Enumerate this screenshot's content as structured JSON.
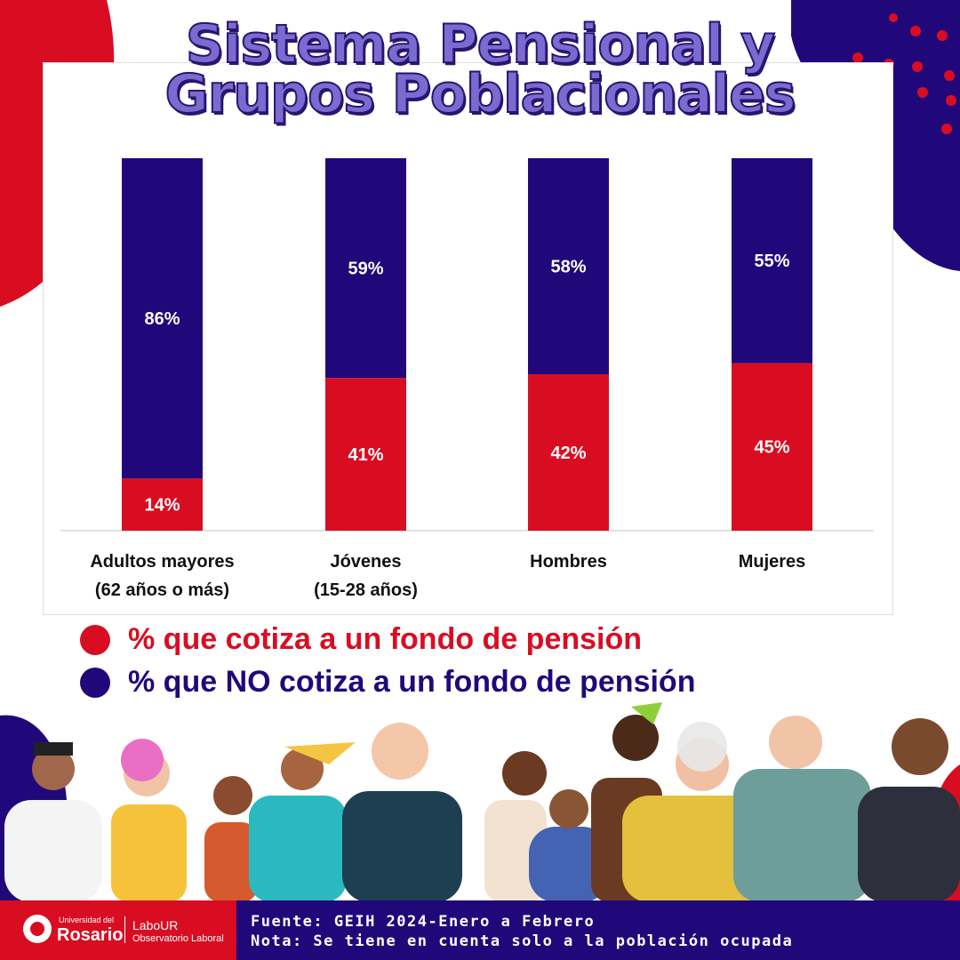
{
  "title_line1": "Sistema Pensional y",
  "title_line2": "Grupos Poblacionales",
  "colors": {
    "red": "#d90d22",
    "navy": "#21087a",
    "title": "#7a6bd0"
  },
  "chart_data": {
    "type": "bar",
    "stacked": true,
    "categories": [
      [
        "Adultos mayores",
        "(62 años o más)"
      ],
      [
        "Jóvenes",
        "(15-28 años)"
      ],
      [
        "Hombres"
      ],
      [
        "Mujeres"
      ]
    ],
    "series": [
      {
        "name": "% que cotiza a un fondo de pensión",
        "color": "#d90d22",
        "values": [
          14,
          41,
          42,
          45
        ],
        "labels": [
          "14%",
          "41%",
          "42%",
          "45%"
        ]
      },
      {
        "name": "% que NO cotiza a un fondo de pensión",
        "color": "#21087a",
        "values": [
          86,
          59,
          58,
          55
        ],
        "labels": [
          "86%",
          "59%",
          "58%",
          "55%"
        ]
      }
    ],
    "ylim": [
      0,
      100
    ],
    "grid": false,
    "legend": "bottom"
  },
  "legend": {
    "cotiza": "% que cotiza a un fondo de pensión",
    "no_cotiza": "% que NO cotiza a un fondo de pensión"
  },
  "footer": {
    "logo_univ_small": "Universidad del",
    "logo_univ_big": "Rosario",
    "logo_lab": "LaboUR",
    "logo_lab_sub": "Observatorio Laboral",
    "source": "Fuente: GEIH 2024-Enero a Febrero",
    "note": "Nota: Se tiene en cuenta solo a la población ocupada"
  }
}
